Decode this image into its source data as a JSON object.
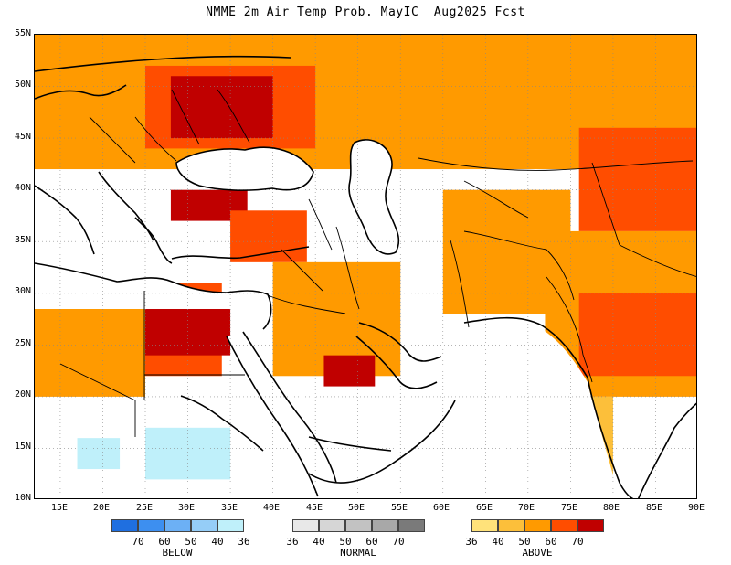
{
  "title": "NMME 2m Air Temp Prob. MayIC  Aug2025 Fcst",
  "lat_labels": [
    "55N",
    "50N",
    "45N",
    "40N",
    "35N",
    "30N",
    "25N",
    "20N",
    "15N",
    "10N"
  ],
  "lon_labels": [
    "15E",
    "20E",
    "25E",
    "30E",
    "35E",
    "40E",
    "45E",
    "50E",
    "55E",
    "60E",
    "65E",
    "70E",
    "75E",
    "80E",
    "85E",
    "90E"
  ],
  "map_extent": {
    "lon_min": 12,
    "lon_max": 90,
    "lat_min": 10,
    "lat_max": 55
  },
  "legend": {
    "below": {
      "title": "BELOW",
      "ticks": [
        "70",
        "60",
        "50",
        "40",
        "36"
      ],
      "colors": [
        "#1f6fe0",
        "#3d8ff0",
        "#6cb0f5",
        "#95cdf7",
        "#bff0fa"
      ]
    },
    "normal": {
      "title": "NORMAL",
      "ticks": [
        "36",
        "40",
        "50",
        "60",
        "70"
      ],
      "colors": [
        "#e8e8e8",
        "#d6d6d6",
        "#c2c2c2",
        "#a8a8a8",
        "#7a7a7a"
      ]
    },
    "above": {
      "title": "ABOVE",
      "ticks": [
        "36",
        "40",
        "50",
        "60",
        "70"
      ],
      "colors": [
        "#ffe27a",
        "#fcbf3a",
        "#ff9a00",
        "#ff4d00",
        "#c00000"
      ]
    }
  },
  "colors": {
    "above_36": "#ffe27a",
    "above_40": "#fcbf3a",
    "above_50": "#ff9a00",
    "above_60": "#ff4d00",
    "above_70": "#c00000",
    "below_40": "#95cdf7",
    "below_36": "#bff0fa",
    "normal_50": "#c2c2c2",
    "no_signal": "#ffffff",
    "coastline": "#000000",
    "grid": "#888888"
  },
  "chart_data": {
    "type": "heatmap",
    "title": "NMME 2m Air Temp Prob. MayIC  Aug2025 Fcst",
    "xlabel": "",
    "ylabel": "",
    "xlim": [
      12,
      90
    ],
    "ylim": [
      10,
      55
    ],
    "grid": true,
    "regions": [
      {
        "lon": [
          12,
          90
        ],
        "lat": [
          42,
          55
        ],
        "category": "above_50"
      },
      {
        "lon": [
          25,
          45
        ],
        "lat": [
          44,
          52
        ],
        "category": "above_60"
      },
      {
        "lon": [
          28,
          40
        ],
        "lat": [
          45,
          51
        ],
        "category": "above_70"
      },
      {
        "lon": [
          76,
          90
        ],
        "lat": [
          36,
          46
        ],
        "category": "above_60"
      },
      {
        "lon": [
          28,
          37
        ],
        "lat": [
          37,
          40
        ],
        "category": "above_70"
      },
      {
        "lon": [
          35,
          44
        ],
        "lat": [
          33,
          38
        ],
        "category": "above_60"
      },
      {
        "lon": [
          21,
          34
        ],
        "lat": [
          22,
          31
        ],
        "category": "above_60"
      },
      {
        "lon": [
          25,
          35
        ],
        "lat": [
          24,
          30
        ],
        "category": "above_70"
      },
      {
        "lon": [
          12,
          25
        ],
        "lat": [
          20,
          30
        ],
        "category": "above_50"
      },
      {
        "lon": [
          40,
          55
        ],
        "lat": [
          22,
          33
        ],
        "category": "above_50"
      },
      {
        "lon": [
          46,
          52
        ],
        "lat": [
          21,
          24
        ],
        "category": "above_70"
      },
      {
        "lon": [
          60,
          75
        ],
        "lat": [
          28,
          40
        ],
        "category": "above_50"
      },
      {
        "lon": [
          72,
          90
        ],
        "lat": [
          20,
          36
        ],
        "category": "above_50"
      },
      {
        "lon": [
          76,
          90
        ],
        "lat": [
          22,
          30
        ],
        "category": "above_60"
      },
      {
        "lon": [
          66,
          80
        ],
        "lat": [
          10,
          20
        ],
        "category": "above_40"
      },
      {
        "lon": [
          25,
          35
        ],
        "lat": [
          12,
          17
        ],
        "category": "below_36"
      },
      {
        "lon": [
          17,
          22
        ],
        "lat": [
          13,
          16
        ],
        "category": "below_36"
      }
    ]
  }
}
